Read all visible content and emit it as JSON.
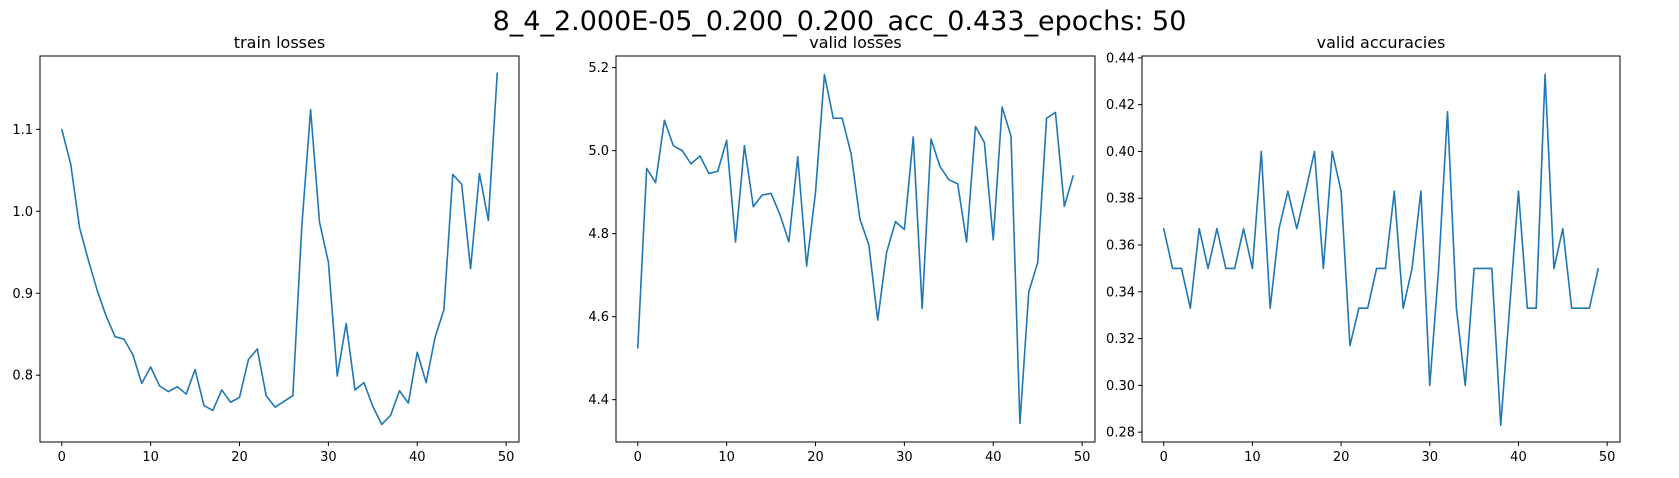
{
  "figure": {
    "suptitle": "8_4_2.000E-05_0.200_0.200_acc_0.433_epochs: 50"
  },
  "chart_data": [
    {
      "type": "line",
      "title": "train losses",
      "xlabel": "",
      "ylabel": "",
      "xlim": [
        -2.45,
        51.45
      ],
      "ylim": [
        0.7185,
        1.1895
      ],
      "x_ticks": [
        0,
        10,
        20,
        30,
        40,
        50
      ],
      "y_ticks": [
        0.8,
        0.9,
        1.0,
        1.1
      ],
      "y_tick_labels": [
        "0.8",
        "0.9",
        "1.0",
        "1.1"
      ],
      "grid": false,
      "color": "#1f77b4",
      "series": [
        {
          "values": [
            1.1,
            1.058,
            0.98,
            0.94,
            0.903,
            0.872,
            0.847,
            0.844,
            0.825,
            0.79,
            0.81,
            0.787,
            0.78,
            0.786,
            0.777,
            0.807,
            0.763,
            0.757,
            0.782,
            0.767,
            0.773,
            0.819,
            0.832,
            0.775,
            0.761,
            0.768,
            0.775,
            0.98,
            1.124,
            0.987,
            0.938,
            0.799,
            0.863,
            0.782,
            0.791,
            0.762,
            0.74,
            0.751,
            0.781,
            0.766,
            0.828,
            0.791,
            0.846,
            0.88,
            1.045,
            1.033,
            0.93,
            1.046,
            0.989,
            1.169
          ]
        }
      ]
    },
    {
      "type": "line",
      "title": "valid losses",
      "xlabel": "",
      "ylabel": "",
      "xlim": [
        -2.45,
        51.45
      ],
      "ylim": [
        4.298,
        5.228
      ],
      "x_ticks": [
        0,
        10,
        20,
        30,
        40,
        50
      ],
      "y_ticks": [
        4.4,
        4.6,
        4.8,
        5.0,
        5.2
      ],
      "y_tick_labels": [
        "4.4",
        "4.6",
        "4.8",
        "5.0",
        "5.2"
      ],
      "grid": false,
      "color": "#1f77b4",
      "series": [
        {
          "values": [
            4.524,
            4.957,
            4.923,
            5.073,
            5.012,
            5.0,
            4.968,
            4.987,
            4.945,
            4.95,
            5.025,
            4.78,
            5.012,
            4.865,
            4.893,
            4.897,
            4.846,
            4.78,
            4.985,
            4.722,
            4.9,
            5.183,
            5.078,
            5.078,
            4.993,
            4.835,
            4.773,
            4.592,
            4.755,
            4.829,
            4.81,
            5.033,
            4.62,
            5.028,
            4.962,
            4.93,
            4.92,
            4.78,
            5.058,
            5.02,
            4.785,
            5.105,
            5.035,
            4.343,
            4.66,
            4.73,
            5.078,
            5.092,
            4.866,
            4.94
          ]
        }
      ]
    },
    {
      "type": "line",
      "title": "valid accuracies",
      "xlabel": "",
      "ylabel": "",
      "xlim": [
        -2.45,
        51.45
      ],
      "ylim": [
        0.2758,
        0.4408
      ],
      "x_ticks": [
        0,
        10,
        20,
        30,
        40,
        50
      ],
      "y_ticks": [
        0.28,
        0.3,
        0.32,
        0.34,
        0.36,
        0.38,
        0.4,
        0.42,
        0.44
      ],
      "y_tick_labels": [
        "0.28",
        "0.30",
        "0.32",
        "0.34",
        "0.36",
        "0.38",
        "0.40",
        "0.42",
        "0.44"
      ],
      "grid": false,
      "color": "#1f77b4",
      "series": [
        {
          "values": [
            0.367,
            0.35,
            0.35,
            0.333,
            0.367,
            0.35,
            0.367,
            0.35,
            0.35,
            0.367,
            0.35,
            0.4,
            0.333,
            0.367,
            0.383,
            0.367,
            0.383,
            0.4,
            0.35,
            0.4,
            0.383,
            0.317,
            0.333,
            0.333,
            0.35,
            0.35,
            0.383,
            0.333,
            0.35,
            0.383,
            0.3,
            0.35,
            0.417,
            0.333,
            0.3,
            0.35,
            0.35,
            0.35,
            0.283,
            0.333,
            0.383,
            0.333,
            0.333,
            0.433,
            0.35,
            0.367,
            0.333,
            0.333,
            0.333,
            0.35
          ]
        }
      ]
    }
  ]
}
